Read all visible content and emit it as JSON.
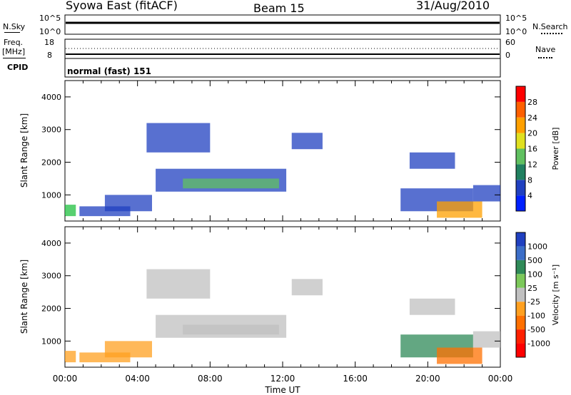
{
  "header": {
    "station": "Syowa East (fitACF)",
    "beam": "Beam 15",
    "date": "31/Aug/2010"
  },
  "panels": {
    "nsky_label": "N.Sky",
    "nsky_tick_top": "10^5",
    "nsky_tick_bottom": "10^0",
    "nsearch_label": "N.Search",
    "nsearch_tick_top": "10^5",
    "nsearch_tick_bottom": "10^0",
    "freq_label": "Freq.",
    "freq_unit": "[MHz]",
    "freq_tick_top": "18",
    "freq_tick_bottom": "8",
    "nave_label": "Nave",
    "nave_tick_top": "60",
    "nave_tick_bottom": "0",
    "cpid_label": "CPID",
    "cpid_value": "normal (fast) 151"
  },
  "chart_data": [
    {
      "type": "heatmap",
      "name": "power",
      "ylabel": "Slant Range [km]",
      "ylim": [
        200,
        4500
      ],
      "yticks": [
        "1000",
        "2000",
        "3000",
        "4000"
      ],
      "xlim": [
        0,
        24
      ],
      "colorbar_label": "Power [dB]",
      "colorbar_ticks": [
        "4",
        "8",
        "12",
        "16",
        "20",
        "24",
        "28"
      ],
      "colorbar_colors": [
        "#0020ff",
        "#2040c0",
        "#208060",
        "#60c060",
        "#e0e020",
        "#ffa000",
        "#ff6000",
        "#ff0000"
      ]
    },
    {
      "type": "heatmap",
      "name": "velocity",
      "ylabel": "Slant Range [km]",
      "ylim": [
        200,
        4500
      ],
      "yticks": [
        "1000",
        "2000",
        "3000",
        "4000"
      ],
      "xlabel": "Time UT",
      "xticks": [
        "00:00",
        "04:00",
        "08:00",
        "12:00",
        "16:00",
        "20:00",
        "00:00"
      ],
      "xlim": [
        0,
        24
      ],
      "colorbar_label": "Velocity [m s⁻¹]",
      "colorbar_ticks": [
        "1000",
        "500",
        "100",
        "25",
        "-25",
        "-100",
        "-500",
        "-1000"
      ],
      "colorbar_colors": [
        "#2040c0",
        "#3c6ec8",
        "#2f8a58",
        "#7cc85a",
        "#c0c0c0",
        "#ffa020",
        "#ff7000",
        "#ff2000",
        "#ff0000"
      ]
    }
  ],
  "echo_regions": [
    {
      "t0": 0.0,
      "t1": 0.6,
      "r0": 350,
      "r1": 700,
      "power": "#20c040",
      "vel": "#ffa020"
    },
    {
      "t0": 0.8,
      "t1": 3.6,
      "r0": 350,
      "r1": 650,
      "power": "#2040c0",
      "vel": "#ffa020"
    },
    {
      "t0": 2.2,
      "t1": 4.8,
      "r0": 500,
      "r1": 1000,
      "power": "#2040c0",
      "vel": "#ffa020"
    },
    {
      "t0": 4.5,
      "t1": 8.0,
      "r0": 2300,
      "r1": 3200,
      "power": "#2040c0",
      "vel": "#c0c0c0"
    },
    {
      "t0": 5.0,
      "t1": 12.2,
      "r0": 1100,
      "r1": 1800,
      "power": "#2040c0",
      "vel": "#c0c0c0"
    },
    {
      "t0": 6.5,
      "t1": 11.8,
      "r0": 1200,
      "r1": 1500,
      "power": "#60c060",
      "vel": "#c0c0c0"
    },
    {
      "t0": 12.5,
      "t1": 14.2,
      "r0": 2400,
      "r1": 2900,
      "power": "#2040c0",
      "vel": "#c0c0c0"
    },
    {
      "t0": 18.5,
      "t1": 22.5,
      "r0": 500,
      "r1": 1200,
      "power": "#2040c0",
      "vel": "#2f8a58"
    },
    {
      "t0": 20.5,
      "t1": 23.0,
      "r0": 300,
      "r1": 800,
      "power": "#ffa000",
      "vel": "#ff7000"
    },
    {
      "t0": 22.5,
      "t1": 24.0,
      "r0": 800,
      "r1": 1300,
      "power": "#2040c0",
      "vel": "#c0c0c0"
    },
    {
      "t0": 19.0,
      "t1": 21.5,
      "r0": 1800,
      "r1": 2300,
      "power": "#2040c0",
      "vel": "#c0c0c0"
    }
  ]
}
